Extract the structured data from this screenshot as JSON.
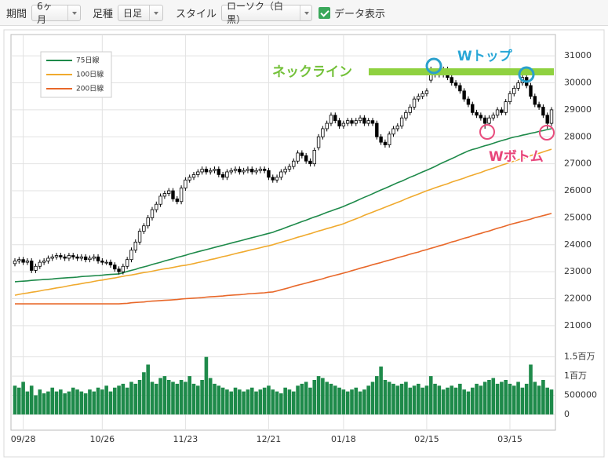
{
  "toolbar": {
    "period_label": "期間",
    "period": "6ヶ月",
    "bar_type_label": "足種",
    "bar_type": "日足",
    "style_label": "スタイル",
    "style": "ローソク（白黒）",
    "show_data": "データ表示",
    "show_data_checked": true
  },
  "chart_data": {
    "type": "candlestick",
    "categories": [
      null,
      null,
      "09/28",
      null,
      null,
      null,
      null,
      null,
      null,
      null,
      null,
      null,
      null,
      null,
      null,
      null,
      null,
      null,
      null,
      null,
      null,
      "10/26",
      null,
      null,
      null,
      null,
      null,
      null,
      null,
      null,
      null,
      null,
      null,
      null,
      null,
      null,
      null,
      null,
      null,
      null,
      null,
      "11/23",
      null,
      null,
      null,
      null,
      null,
      null,
      null,
      null,
      null,
      null,
      null,
      null,
      null,
      null,
      null,
      null,
      null,
      null,
      null,
      "12/21",
      null,
      null,
      null,
      null,
      null,
      null,
      null,
      null,
      null,
      null,
      null,
      null,
      null,
      null,
      null,
      null,
      null,
      "01/18",
      null,
      null,
      null,
      null,
      null,
      null,
      null,
      null,
      null,
      null,
      null,
      null,
      null,
      null,
      null,
      null,
      null,
      null,
      null,
      "02/15",
      null,
      null,
      null,
      null,
      null,
      null,
      null,
      null,
      null,
      null,
      null,
      null,
      null,
      null,
      null,
      null,
      null,
      null,
      null,
      "03/15",
      null,
      null,
      null,
      null,
      null,
      null,
      null,
      null,
      null,
      null
    ],
    "open": [
      23300,
      23400,
      23450,
      23350,
      23400,
      23050,
      23200,
      23350,
      23400,
      23500,
      23550,
      23600,
      23550,
      23500,
      23600,
      23550,
      23500,
      23550,
      23450,
      23500,
      23550,
      23400,
      23350,
      23350,
      23250,
      23100,
      23000,
      23200,
      23450,
      23800,
      24100,
      24500,
      24700,
      25000,
      25300,
      25500,
      25800,
      25900,
      26000,
      25700,
      25600,
      26100,
      26400,
      26500,
      26600,
      26700,
      26800,
      26700,
      26750,
      26800,
      26600,
      26500,
      26700,
      26750,
      26800,
      26700,
      26750,
      26800,
      26700,
      26750,
      26800,
      26750,
      26500,
      26400,
      26500,
      26700,
      26800,
      26900,
      27100,
      27400,
      27300,
      27100,
      27000,
      27600,
      28000,
      28300,
      28500,
      28800,
      28600,
      28400,
      28500,
      28600,
      28500,
      28600,
      28700,
      28500,
      28600,
      28500,
      28000,
      27800,
      27700,
      28100,
      28300,
      28400,
      28700,
      28900,
      29100,
      29400,
      29500,
      29600,
      30100,
      30300,
      30400,
      30300,
      30500,
      30200,
      30000,
      29900,
      29700,
      29400,
      29200,
      28900,
      28800,
      28700,
      28500,
      28700,
      28800,
      29000,
      28900,
      29300,
      29600,
      29800,
      30000,
      30200,
      29900,
      29500,
      29200,
      29100,
      28800,
      28500
    ],
    "high": [
      23500,
      23550,
      23550,
      23500,
      23500,
      23300,
      23450,
      23500,
      23600,
      23650,
      23700,
      23700,
      23650,
      23700,
      23700,
      23650,
      23650,
      23650,
      23600,
      23650,
      23650,
      23500,
      23450,
      23450,
      23350,
      23200,
      23300,
      23550,
      23900,
      24200,
      24600,
      24800,
      25100,
      25400,
      25600,
      25900,
      26000,
      26100,
      26100,
      25800,
      26200,
      26500,
      26600,
      26700,
      26800,
      26900,
      26900,
      26850,
      26900,
      26900,
      26700,
      26800,
      26850,
      26900,
      26900,
      26850,
      26900,
      26900,
      26850,
      26900,
      26900,
      26850,
      26600,
      26600,
      26800,
      26900,
      27000,
      27200,
      27500,
      27500,
      27400,
      27200,
      27600,
      28100,
      28400,
      28600,
      28900,
      28900,
      28700,
      28600,
      28700,
      28700,
      28700,
      28800,
      28800,
      28700,
      28700,
      28600,
      28100,
      27900,
      28200,
      28400,
      28500,
      28800,
      29000,
      29200,
      29500,
      29600,
      29700,
      29800,
      30600,
      30500,
      30500,
      30600,
      30600,
      30300,
      30100,
      30000,
      29800,
      29500,
      29300,
      29000,
      28900,
      28800,
      28800,
      28900,
      29100,
      29100,
      29400,
      29700,
      29900,
      30100,
      30300,
      30300,
      30000,
      29600,
      29300,
      29200,
      28900,
      29100
    ],
    "low": [
      23200,
      23300,
      23250,
      23250,
      22950,
      22950,
      23100,
      23250,
      23300,
      23400,
      23450,
      23450,
      23400,
      23400,
      23450,
      23400,
      23400,
      23350,
      23350,
      23400,
      23300,
      23250,
      23250,
      23150,
      23000,
      22900,
      22900,
      23100,
      23350,
      23700,
      24000,
      24400,
      24600,
      24900,
      25200,
      25400,
      25700,
      25800,
      25600,
      25500,
      25500,
      26000,
      26300,
      26400,
      26500,
      26600,
      26600,
      26600,
      26650,
      26500,
      26400,
      26400,
      26600,
      26650,
      26600,
      26600,
      26650,
      26600,
      26600,
      26650,
      26650,
      26400,
      26300,
      26300,
      26400,
      26600,
      26700,
      26800,
      27000,
      27200,
      27000,
      26900,
      26900,
      27500,
      27900,
      28200,
      28400,
      28500,
      28300,
      28300,
      28400,
      28400,
      28400,
      28500,
      28400,
      28400,
      28400,
      27900,
      27700,
      27600,
      27600,
      28000,
      28200,
      28300,
      28600,
      28800,
      29000,
      29300,
      29400,
      29500,
      30000,
      30200,
      30200,
      30200,
      30100,
      29900,
      29800,
      29600,
      29300,
      29100,
      28800,
      28700,
      28600,
      28300,
      28400,
      28600,
      28700,
      28800,
      28800,
      29200,
      29500,
      29700,
      29900,
      29800,
      29400,
      29100,
      29000,
      28700,
      28300,
      28400
    ],
    "close": [
      23400,
      23450,
      23350,
      23400,
      23050,
      23200,
      23350,
      23400,
      23500,
      23550,
      23600,
      23550,
      23500,
      23600,
      23550,
      23500,
      23550,
      23450,
      23500,
      23550,
      23400,
      23350,
      23350,
      23250,
      23100,
      23000,
      23200,
      23450,
      23800,
      24100,
      24500,
      24700,
      25000,
      25300,
      25500,
      25800,
      25900,
      26000,
      25700,
      25600,
      26100,
      26400,
      26500,
      26600,
      26700,
      26800,
      26700,
      26750,
      26800,
      26600,
      26500,
      26700,
      26750,
      26800,
      26700,
      26750,
      26800,
      26700,
      26750,
      26800,
      26750,
      26500,
      26400,
      26500,
      26700,
      26800,
      26900,
      27100,
      27400,
      27300,
      27100,
      27000,
      27500,
      28000,
      28300,
      28500,
      28800,
      28600,
      28400,
      28500,
      28600,
      28500,
      28600,
      28700,
      28500,
      28600,
      28500,
      28000,
      27800,
      27700,
      28100,
      28300,
      28400,
      28700,
      28900,
      29100,
      29400,
      29500,
      29600,
      29700,
      30300,
      30400,
      30300,
      30500,
      30200,
      30000,
      29900,
      29700,
      29400,
      29200,
      28900,
      28800,
      28700,
      28500,
      28700,
      28800,
      29000,
      28900,
      29300,
      29600,
      29800,
      30000,
      30200,
      29900,
      29500,
      29200,
      29100,
      28800,
      28500,
      29000
    ],
    "up_color": "#ffffff",
    "down_color": "#000000",
    "series": [
      {
        "name": "75日線",
        "color": "#1e8a4a",
        "values": [
          22630,
          22640,
          22650,
          22660,
          22680,
          22690,
          22700,
          22710,
          22720,
          22730,
          22750,
          22760,
          22770,
          22780,
          22790,
          22800,
          22820,
          22830,
          22840,
          22850,
          22860,
          22870,
          22890,
          22900,
          22910,
          22920,
          22960,
          23010,
          23050,
          23090,
          23140,
          23180,
          23220,
          23270,
          23310,
          23350,
          23400,
          23440,
          23480,
          23530,
          23570,
          23610,
          23660,
          23700,
          23740,
          23780,
          23820,
          23860,
          23900,
          23940,
          23980,
          24020,
          24060,
          24100,
          24140,
          24180,
          24220,
          24260,
          24300,
          24340,
          24380,
          24420,
          24460,
          24520,
          24570,
          24630,
          24690,
          24740,
          24800,
          24860,
          24910,
          24970,
          25030,
          25080,
          25140,
          25200,
          25250,
          25310,
          25360,
          25420,
          25490,
          25550,
          25620,
          25690,
          25760,
          25820,
          25890,
          25960,
          26030,
          26090,
          26160,
          26230,
          26300,
          26360,
          26430,
          26500,
          26560,
          26630,
          26700,
          26760,
          26830,
          26900,
          26980,
          27050,
          27120,
          27190,
          27260,
          27340,
          27410,
          27480,
          27530,
          27570,
          27620,
          27670,
          27710,
          27760,
          27810,
          27860,
          27900,
          27950,
          27990,
          28020,
          28060,
          28090,
          28130,
          28160,
          28200,
          28230,
          28270,
          28300
        ]
      },
      {
        "name": "100日線",
        "color": "#f0aa2e",
        "values": [
          22130,
          22160,
          22190,
          22210,
          22240,
          22260,
          22290,
          22320,
          22340,
          22370,
          22400,
          22420,
          22450,
          22480,
          22510,
          22530,
          22560,
          22590,
          22610,
          22640,
          22670,
          22690,
          22720,
          22750,
          22770,
          22800,
          22830,
          22860,
          22880,
          22910,
          22940,
          22970,
          22990,
          23020,
          23050,
          23080,
          23110,
          23130,
          23160,
          23190,
          23220,
          23240,
          23270,
          23300,
          23340,
          23370,
          23410,
          23450,
          23480,
          23520,
          23560,
          23590,
          23630,
          23670,
          23710,
          23740,
          23780,
          23820,
          23850,
          23890,
          23930,
          23960,
          24000,
          24050,
          24090,
          24140,
          24180,
          24230,
          24280,
          24320,
          24370,
          24410,
          24460,
          24510,
          24550,
          24600,
          24640,
          24690,
          24730,
          24780,
          24840,
          24900,
          24960,
          25020,
          25090,
          25150,
          25210,
          25270,
          25330,
          25390,
          25450,
          25510,
          25570,
          25630,
          25700,
          25760,
          25820,
          25880,
          25940,
          26000,
          26050,
          26110,
          26160,
          26210,
          26260,
          26320,
          26370,
          26420,
          26470,
          26530,
          26580,
          26630,
          26680,
          26740,
          26790,
          26840,
          26890,
          26950,
          27000,
          27050,
          27100,
          27150,
          27200,
          27250,
          27300,
          27350,
          27390,
          27440,
          27490,
          27540
        ]
      },
      {
        "name": "200日線",
        "color": "#e8682a",
        "values": [
          21810,
          21810,
          21810,
          21810,
          21810,
          21810,
          21810,
          21810,
          21810,
          21810,
          21810,
          21810,
          21810,
          21810,
          21810,
          21810,
          21810,
          21810,
          21810,
          21810,
          21810,
          21810,
          21810,
          21810,
          21810,
          21810,
          21820,
          21830,
          21850,
          21860,
          21870,
          21880,
          21900,
          21910,
          21920,
          21930,
          21940,
          21950,
          21960,
          21970,
          21990,
          22000,
          22010,
          22020,
          22030,
          22040,
          22060,
          22070,
          22080,
          22090,
          22100,
          22120,
          22130,
          22140,
          22150,
          22160,
          22180,
          22190,
          22200,
          22210,
          22220,
          22240,
          22250,
          22290,
          22330,
          22370,
          22410,
          22460,
          22500,
          22540,
          22580,
          22620,
          22660,
          22700,
          22740,
          22790,
          22830,
          22870,
          22910,
          22950,
          22990,
          23040,
          23080,
          23130,
          23170,
          23210,
          23260,
          23300,
          23340,
          23390,
          23430,
          23470,
          23520,
          23560,
          23600,
          23650,
          23690,
          23730,
          23780,
          23820,
          23870,
          23910,
          23960,
          24000,
          24050,
          24100,
          24140,
          24190,
          24240,
          24280,
          24330,
          24380,
          24420,
          24470,
          24510,
          24560,
          24610,
          24650,
          24700,
          24750,
          24790,
          24830,
          24870,
          24910,
          24950,
          25000,
          25040,
          25080,
          25120,
          25160
        ]
      }
    ],
    "ylim": [
      20270,
      31790
    ],
    "yticks": [
      21000,
      22000,
      23000,
      24000,
      25000,
      26000,
      27000,
      28000,
      29000,
      30000,
      31000
    ],
    "volume": {
      "color": "#1e8a4a",
      "ylim": [
        0,
        1800000
      ],
      "yticks": [
        0,
        500000,
        {
          "value": 1000000,
          "label": "1百万"
        },
        {
          "value": 1500000,
          "label": "1.5百万"
        }
      ],
      "values": [
        750000,
        700000,
        850000,
        600000,
        750000,
        500000,
        650000,
        550000,
        600000,
        700000,
        600000,
        650000,
        550000,
        600000,
        700000,
        650000,
        600000,
        550000,
        650000,
        600000,
        700000,
        650000,
        750000,
        600000,
        700000,
        750000,
        800000,
        700000,
        850000,
        800000,
        900000,
        1100000,
        1300000,
        850000,
        800000,
        950000,
        1000000,
        900000,
        850000,
        800000,
        900000,
        850000,
        1000000,
        800000,
        750000,
        900000,
        1500000,
        950000,
        800000,
        750000,
        700000,
        650000,
        600000,
        700000,
        650000,
        600000,
        650000,
        700000,
        600000,
        650000,
        700000,
        750000,
        650000,
        600000,
        550000,
        700000,
        650000,
        600000,
        750000,
        800000,
        850000,
        700000,
        900000,
        1000000,
        950000,
        850000,
        800000,
        750000,
        700000,
        650000,
        600000,
        650000,
        700000,
        600000,
        650000,
        750000,
        850000,
        1000000,
        1250000,
        900000,
        850000,
        800000,
        750000,
        800000,
        850000,
        700000,
        750000,
        800000,
        700000,
        750000,
        1000000,
        800000,
        750000,
        650000,
        700000,
        750000,
        700000,
        800000,
        650000,
        600000,
        700000,
        800000,
        750000,
        850000,
        900000,
        950000,
        800000,
        850000,
        900000,
        800000,
        750000,
        850000,
        700000,
        800000,
        1300000,
        850000,
        750000,
        900000,
        700000,
        650000
      ]
    },
    "grid": true,
    "legend": "top-left",
    "annotations": [
      "ネックライン",
      "Wトップ",
      "Wボトム"
    ]
  }
}
